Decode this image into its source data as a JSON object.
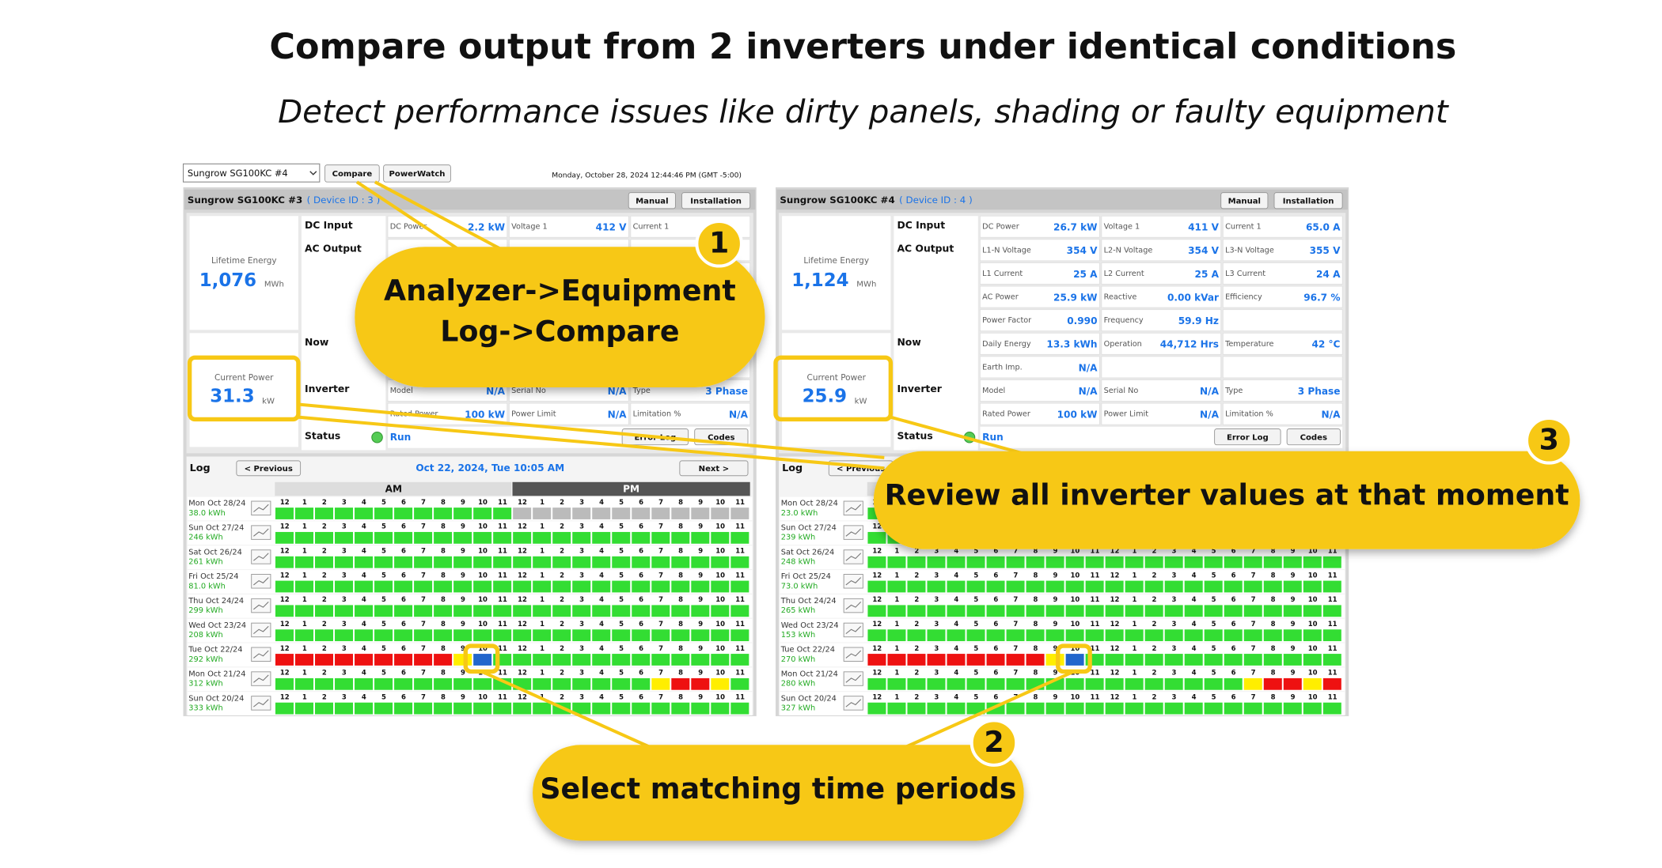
{
  "header": {
    "title": "Compare output from 2 inverters under identical conditions",
    "subtitle": "Detect performance issues like dirty panels, shading or faulty equipment"
  },
  "toolbar": {
    "device_select": "Sungrow SG100KC #4",
    "compare": "Compare",
    "powerwatch": "PowerWatch",
    "datetime": "Monday, October 28, 2024 12:44:46 PM (GMT -5:00)"
  },
  "hours": [
    "12",
    "1",
    "2",
    "3",
    "4",
    "5",
    "6",
    "7",
    "8",
    "9",
    "10",
    "11",
    "12",
    "1",
    "2",
    "3",
    "4",
    "5",
    "6",
    "7",
    "8",
    "9",
    "10",
    "11"
  ],
  "panels": [
    {
      "device": "Sungrow SG100KC #3",
      "device_id": "( Device ID : 3 )",
      "manual": "Manual",
      "installation": "Installation",
      "lifetime": {
        "label": "Lifetime Energy",
        "value": "1,076",
        "unit": "MWh"
      },
      "current_power": {
        "label": "Current Power",
        "value": "31.3",
        "unit": "kW"
      },
      "sections": [
        "DC Input",
        "AC Output",
        "Now",
        "Inverter",
        "Status"
      ],
      "values": [
        [
          [
            "DC Power",
            "2.2 kW"
          ],
          [
            "Voltage 1",
            "412 V"
          ],
          [
            "Current 1",
            null
          ]
        ],
        null,
        null,
        null,
        null,
        null,
        null,
        [
          [
            "Model",
            "N/A"
          ],
          [
            "Serial No",
            "N/A"
          ],
          [
            "Type",
            "3 Phase"
          ]
        ],
        [
          [
            "Rated Power",
            "100 kW"
          ],
          [
            "Power Limit",
            "N/A"
          ],
          [
            "Limitation %",
            "N/A"
          ]
        ]
      ],
      "status": "Run",
      "error_log": "Error Log",
      "codes": "Codes",
      "log": {
        "label": "Log",
        "previous": "< Previous",
        "date": "Oct 22, 2024, Tue 10:05 AM",
        "next": "Next >",
        "am": "AM",
        "pm": "PM",
        "days": [
          {
            "date": "Mon Oct 28/24",
            "energy": "38.0 kWh",
            "cells": [
              "#3d3",
              "#3d3",
              "#3d3",
              "#3d3",
              "#3d3",
              "#3d3",
              "#3d3",
              "#3d3",
              "#3d3",
              "#3d3",
              "#3d3",
              "#3d3",
              "#bbb",
              "#bbb",
              "#bbb",
              "#bbb",
              "#bbb",
              "#bbb",
              "#bbb",
              "#bbb",
              "#bbb",
              "#bbb",
              "#bbb",
              "#bbb"
            ]
          },
          {
            "date": "Sun Oct 27/24",
            "energy": "246 kWh",
            "cells": [
              "#3d3",
              "#3d3",
              "#3d3",
              "#3d3",
              "#3d3",
              "#3d3",
              "#3d3",
              "#3d3",
              "#3d3",
              "#3d3",
              "#3d3",
              "#3d3",
              "#3d3",
              "#3d3",
              "#3d3",
              "#3d3",
              "#3d3",
              "#3d3",
              "#3d3",
              "#3d3",
              "#3d3",
              "#3d3",
              "#3d3",
              "#3d3"
            ]
          },
          {
            "date": "Sat Oct 26/24",
            "energy": "261 kWh",
            "cells": [
              "#3d3",
              "#3d3",
              "#3d3",
              "#3d3",
              "#3d3",
              "#3d3",
              "#3d3",
              "#3d3",
              "#3d3",
              "#3d3",
              "#3d3",
              "#3d3",
              "#3d3",
              "#3d3",
              "#3d3",
              "#3d3",
              "#3d3",
              "#3d3",
              "#3d3",
              "#3d3",
              "#3d3",
              "#3d3",
              "#3d3",
              "#3d3"
            ]
          },
          {
            "date": "Fri Oct 25/24",
            "energy": "81.0 kWh",
            "cells": [
              "#3d3",
              "#3d3",
              "#3d3",
              "#3d3",
              "#3d3",
              "#3d3",
              "#3d3",
              "#3d3",
              "#3d3",
              "#3d3",
              "#3d3",
              "#3d3",
              "#3d3",
              "#3d3",
              "#3d3",
              "#3d3",
              "#3d3",
              "#3d3",
              "#3d3",
              "#3d3",
              "#3d3",
              "#3d3",
              "#3d3",
              "#3d3"
            ]
          },
          {
            "date": "Thu Oct 24/24",
            "energy": "299 kWh",
            "cells": [
              "#3d3",
              "#3d3",
              "#3d3",
              "#3d3",
              "#3d3",
              "#3d3",
              "#3d3",
              "#3d3",
              "#3d3",
              "#3d3",
              "#3d3",
              "#3d3",
              "#3d3",
              "#3d3",
              "#3d3",
              "#3d3",
              "#3d3",
              "#3d3",
              "#3d3",
              "#3d3",
              "#3d3",
              "#3d3",
              "#3d3",
              "#3d3"
            ]
          },
          {
            "date": "Wed Oct 23/24",
            "energy": "208 kWh",
            "cells": [
              "#3d3",
              "#3d3",
              "#3d3",
              "#3d3",
              "#3d3",
              "#3d3",
              "#3d3",
              "#3d3",
              "#3d3",
              "#3d3",
              "#3d3",
              "#3d3",
              "#3d3",
              "#3d3",
              "#3d3",
              "#3d3",
              "#3d3",
              "#3d3",
              "#3d3",
              "#3d3",
              "#3d3",
              "#3d3",
              "#3d3",
              "#3d3"
            ]
          },
          {
            "date": "Tue Oct 22/24",
            "energy": "292 kWh",
            "cells": [
              "#e11",
              "#e11",
              "#e11",
              "#e11",
              "#e11",
              "#e11",
              "#e11",
              "#e11",
              "#e11",
              "#fe0",
              "#26c",
              "#3d3",
              "#3d3",
              "#3d3",
              "#3d3",
              "#3d3",
              "#3d3",
              "#3d3",
              "#3d3",
              "#3d3",
              "#3d3",
              "#3d3",
              "#3d3",
              "#3d3"
            ]
          },
          {
            "date": "Mon Oct 21/24",
            "energy": "312 kWh",
            "cells": [
              "#3d3",
              "#3d3",
              "#3d3",
              "#3d3",
              "#3d3",
              "#3d3",
              "#3d3",
              "#3d3",
              "#3d3",
              "#3d3",
              "#3d3",
              "#3d3",
              "#3d3",
              "#3d3",
              "#3d3",
              "#3d3",
              "#3d3",
              "#3d3",
              "#3d3",
              "#fe0",
              "#e11",
              "#e11",
              "#fe0",
              "#3d3"
            ]
          },
          {
            "date": "Sun Oct 20/24",
            "energy": "333 kWh",
            "cells": [
              "#3d3",
              "#3d3",
              "#3d3",
              "#3d3",
              "#3d3",
              "#3d3",
              "#3d3",
              "#3d3",
              "#3d3",
              "#3d3",
              "#3d3",
              "#3d3",
              "#3d3",
              "#3d3",
              "#3d3",
              "#3d3",
              "#3d3",
              "#3d3",
              "#3d3",
              "#3d3",
              "#3d3",
              "#3d3",
              "#3d3",
              "#3d3"
            ]
          }
        ]
      }
    },
    {
      "device": "Sungrow SG100KC #4",
      "device_id": "( Device ID : 4 )",
      "manual": "Manual",
      "installation": "Installation",
      "lifetime": {
        "label": "Lifetime Energy",
        "value": "1,124",
        "unit": "MWh"
      },
      "current_power": {
        "label": "Current Power",
        "value": "25.9",
        "unit": "kW"
      },
      "sections": [
        "DC Input",
        "AC Output",
        "Now",
        "Inverter",
        "Status"
      ],
      "values": [
        [
          [
            "DC Power",
            "26.7 kW"
          ],
          [
            "Voltage 1",
            "411 V"
          ],
          [
            "Current 1",
            "65.0 A"
          ]
        ],
        [
          [
            "L1-N Voltage",
            "354 V"
          ],
          [
            "L2-N Voltage",
            "354 V"
          ],
          [
            "L3-N Voltage",
            "355 V"
          ]
        ],
        [
          [
            "L1 Current",
            "25 A"
          ],
          [
            "L2 Current",
            "25 A"
          ],
          [
            "L3 Current",
            "24 A"
          ]
        ],
        [
          [
            "AC Power",
            "25.9 kW"
          ],
          [
            "Reactive",
            "0.00 kVar"
          ],
          [
            "Efficiency",
            "96.7 %"
          ]
        ],
        [
          [
            "Power Factor",
            "0.990"
          ],
          [
            "Frequency",
            "59.9 Hz"
          ],
          null
        ],
        [
          [
            "Daily Energy",
            "13.3 kWh"
          ],
          [
            "Operation",
            "44,712 Hrs"
          ],
          [
            "Temperature",
            "42 °C"
          ]
        ],
        [
          [
            "Earth Imp.",
            "N/A"
          ],
          null,
          null
        ],
        [
          [
            "Model",
            "N/A"
          ],
          [
            "Serial No",
            "N/A"
          ],
          [
            "Type",
            "3 Phase"
          ]
        ],
        [
          [
            "Rated Power",
            "100 kW"
          ],
          [
            "Power Limit",
            "N/A"
          ],
          [
            "Limitation %",
            "N/A"
          ]
        ]
      ],
      "status": "Run",
      "error_log": "Error Log",
      "codes": "Codes",
      "log": {
        "label": "Log",
        "previous": "< Previous",
        "days": [
          {
            "date": "Mon Oct 28/24",
            "energy": "23.0 kWh",
            "cells": [
              "#3d3",
              "#3d3",
              "#3d3",
              "#3d3",
              "#3d3",
              "#3d3",
              "#3d3",
              "#3d3",
              "#3d3",
              "#3d3",
              "#3d3",
              "#3d3",
              "#bbb",
              "#bbb",
              "#bbb",
              "#bbb",
              "#bbb",
              "#bbb",
              "#bbb",
              "#bbb",
              "#bbb",
              "#bbb",
              "#bbb",
              "#bbb"
            ]
          },
          {
            "date": "Sun Oct 27/24",
            "energy": "239 kWh",
            "cells": [
              "#3d3",
              "#3d3",
              "#3d3",
              "#3d3",
              "#3d3",
              "#3d3",
              "#3d3",
              "#3d3",
              "#3d3",
              "#3d3",
              "#3d3",
              "#3d3",
              "#3d3",
              "#3d3",
              "#3d3",
              "#3d3",
              "#3d3",
              "#3d3",
              "#3d3",
              "#3d3",
              "#3d3",
              "#3d3",
              "#3d3",
              "#3d3"
            ]
          },
          {
            "date": "Sat Oct 26/24",
            "energy": "248 kWh",
            "cells": [
              "#3d3",
              "#3d3",
              "#3d3",
              "#3d3",
              "#3d3",
              "#3d3",
              "#3d3",
              "#3d3",
              "#3d3",
              "#3d3",
              "#3d3",
              "#3d3",
              "#3d3",
              "#3d3",
              "#3d3",
              "#3d3",
              "#3d3",
              "#3d3",
              "#3d3",
              "#3d3",
              "#3d3",
              "#3d3",
              "#3d3",
              "#3d3"
            ]
          },
          {
            "date": "Fri Oct 25/24",
            "energy": "73.0 kWh",
            "cells": [
              "#3d3",
              "#3d3",
              "#3d3",
              "#3d3",
              "#3d3",
              "#3d3",
              "#3d3",
              "#3d3",
              "#3d3",
              "#3d3",
              "#3d3",
              "#3d3",
              "#3d3",
              "#3d3",
              "#3d3",
              "#3d3",
              "#3d3",
              "#3d3",
              "#3d3",
              "#3d3",
              "#3d3",
              "#3d3",
              "#3d3",
              "#3d3"
            ]
          },
          {
            "date": "Thu Oct 24/24",
            "energy": "265 kWh",
            "cells": [
              "#3d3",
              "#3d3",
              "#3d3",
              "#3d3",
              "#3d3",
              "#3d3",
              "#3d3",
              "#3d3",
              "#3d3",
              "#3d3",
              "#3d3",
              "#3d3",
              "#3d3",
              "#3d3",
              "#3d3",
              "#3d3",
              "#3d3",
              "#3d3",
              "#3d3",
              "#3d3",
              "#3d3",
              "#3d3",
              "#3d3",
              "#3d3"
            ]
          },
          {
            "date": "Wed Oct 23/24",
            "energy": "153 kWh",
            "cells": [
              "#3d3",
              "#3d3",
              "#3d3",
              "#3d3",
              "#3d3",
              "#3d3",
              "#3d3",
              "#3d3",
              "#3d3",
              "#3d3",
              "#3d3",
              "#3d3",
              "#3d3",
              "#3d3",
              "#3d3",
              "#3d3",
              "#3d3",
              "#3d3",
              "#3d3",
              "#3d3",
              "#3d3",
              "#3d3",
              "#3d3",
              "#3d3"
            ]
          },
          {
            "date": "Tue Oct 22/24",
            "energy": "270 kWh",
            "cells": [
              "#e11",
              "#e11",
              "#e11",
              "#e11",
              "#e11",
              "#e11",
              "#e11",
              "#e11",
              "#e11",
              "#fe0",
              "#26c",
              "#3d3",
              "#3d3",
              "#3d3",
              "#3d3",
              "#3d3",
              "#3d3",
              "#3d3",
              "#3d3",
              "#3d3",
              "#3d3",
              "#3d3",
              "#3d3",
              "#3d3"
            ]
          },
          {
            "date": "Mon Oct 21/24",
            "energy": "280 kWh",
            "cells": [
              "#3d3",
              "#3d3",
              "#3d3",
              "#3d3",
              "#3d3",
              "#3d3",
              "#3d3",
              "#3d3",
              "#3d3",
              "#3d3",
              "#3d3",
              "#3d3",
              "#3d3",
              "#3d3",
              "#3d3",
              "#3d3",
              "#3d3",
              "#3d3",
              "#3d3",
              "#fe0",
              "#e11",
              "#e11",
              "#fe0",
              "#e11"
            ]
          },
          {
            "date": "Sun Oct 20/24",
            "energy": "327 kWh",
            "cells": [
              "#3d3",
              "#3d3",
              "#3d3",
              "#3d3",
              "#3d3",
              "#3d3",
              "#3d3",
              "#3d3",
              "#3d3",
              "#3d3",
              "#3d3",
              "#3d3",
              "#3d3",
              "#3d3",
              "#3d3",
              "#3d3",
              "#3d3",
              "#3d3",
              "#3d3",
              "#3d3",
              "#3d3",
              "#3d3",
              "#3d3",
              "#3d3"
            ]
          }
        ]
      }
    }
  ],
  "callouts": [
    {
      "number": "1",
      "text": [
        "Analyzer->Equipment",
        "Log->Compare"
      ]
    },
    {
      "number": "2",
      "text": [
        "Select matching time periods"
      ]
    },
    {
      "number": "3",
      "text": [
        "Review all inverter values at that moment"
      ]
    }
  ]
}
